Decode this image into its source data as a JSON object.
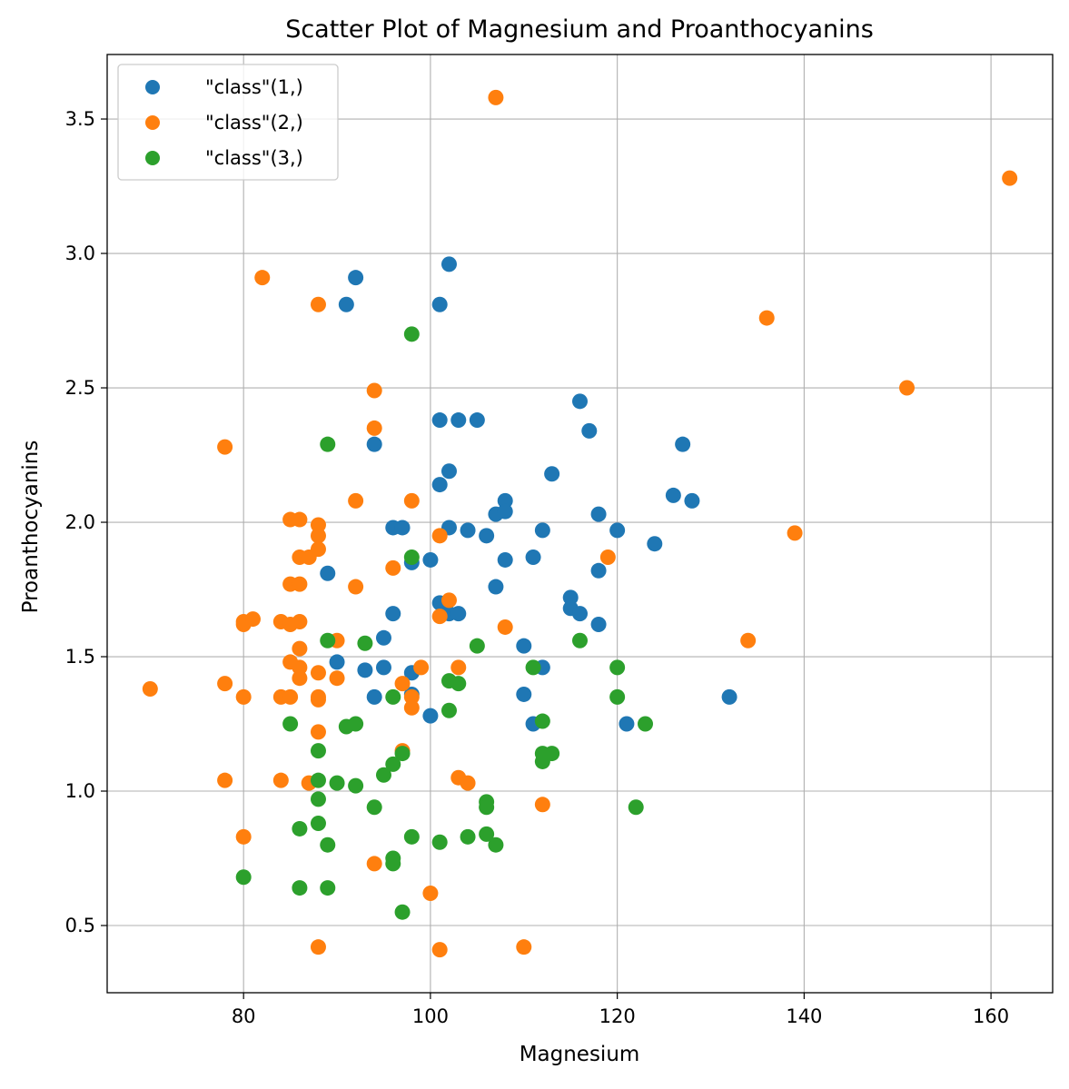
{
  "chart_data": {
    "type": "scatter",
    "title": "Scatter Plot of Magnesium and Proanthocyanins",
    "xlabel": "Magnesium",
    "ylabel": "Proanthocyanins",
    "xlim": [
      65.4,
      166.6
    ],
    "ylim": [
      0.25,
      3.74
    ],
    "xticks": [
      80,
      100,
      120,
      140,
      160
    ],
    "xtick_labels": [
      "80",
      "100",
      "120",
      "140",
      "160"
    ],
    "yticks": [
      0.5,
      1.0,
      1.5,
      2.0,
      2.5,
      3.0,
      3.5
    ],
    "ytick_labels": [
      "0.5",
      "1.0",
      "1.5",
      "2.0",
      "2.5",
      "3.0",
      "3.5"
    ],
    "grid": true,
    "legend_position": "top-left",
    "series": [
      {
        "name": "\"class\"(1,)",
        "color": "#1f77b4",
        "points": [
          [
            92,
            2.91
          ],
          [
            91,
            2.81
          ],
          [
            102,
            2.96
          ],
          [
            101,
            2.81
          ],
          [
            94,
            2.29
          ],
          [
            101,
            2.38
          ],
          [
            103,
            2.38
          ],
          [
            105,
            2.38
          ],
          [
            102,
            2.19
          ],
          [
            101,
            2.14
          ],
          [
            116,
            2.45
          ],
          [
            117,
            2.34
          ],
          [
            127,
            2.29
          ],
          [
            113,
            2.18
          ],
          [
            126,
            2.1
          ],
          [
            128,
            2.08
          ],
          [
            107,
            2.03
          ],
          [
            108,
            2.08
          ],
          [
            108,
            2.04
          ],
          [
            118,
            2.03
          ],
          [
            96,
            1.98
          ],
          [
            97,
            1.98
          ],
          [
            102,
            1.98
          ],
          [
            104,
            1.97
          ],
          [
            106,
            1.95
          ],
          [
            112,
            1.97
          ],
          [
            120,
            1.97
          ],
          [
            124,
            1.92
          ],
          [
            98,
            1.85
          ],
          [
            100,
            1.86
          ],
          [
            108,
            1.86
          ],
          [
            111,
            1.87
          ],
          [
            118,
            1.82
          ],
          [
            89,
            1.81
          ],
          [
            107,
            1.76
          ],
          [
            101,
            1.7
          ],
          [
            102,
            1.66
          ],
          [
            103,
            1.66
          ],
          [
            96,
            1.66
          ],
          [
            115,
            1.72
          ],
          [
            115,
            1.68
          ],
          [
            116,
            1.66
          ],
          [
            118,
            1.62
          ],
          [
            95,
            1.57
          ],
          [
            110,
            1.54
          ],
          [
            90,
            1.48
          ],
          [
            93,
            1.45
          ],
          [
            95,
            1.46
          ],
          [
            98,
            1.44
          ],
          [
            112,
            1.46
          ],
          [
            94,
            1.35
          ],
          [
            98,
            1.36
          ],
          [
            110,
            1.36
          ],
          [
            132,
            1.35
          ],
          [
            100,
            1.28
          ],
          [
            111,
            1.25
          ],
          [
            121,
            1.25
          ]
        ]
      },
      {
        "name": "\"class\"(2,)",
        "color": "#ff7f0e",
        "points": [
          [
            107,
            3.58
          ],
          [
            162,
            3.28
          ],
          [
            82,
            2.91
          ],
          [
            88,
            2.81
          ],
          [
            136,
            2.76
          ],
          [
            151,
            2.5
          ],
          [
            94,
            2.49
          ],
          [
            94,
            2.35
          ],
          [
            78,
            2.28
          ],
          [
            92,
            2.08
          ],
          [
            98,
            2.08
          ],
          [
            85,
            2.01
          ],
          [
            86,
            2.01
          ],
          [
            88,
            1.99
          ],
          [
            88,
            1.95
          ],
          [
            101,
            1.95
          ],
          [
            139,
            1.96
          ],
          [
            88,
            1.9
          ],
          [
            86,
            1.87
          ],
          [
            87,
            1.87
          ],
          [
            119,
            1.87
          ],
          [
            96,
            1.83
          ],
          [
            85,
            1.77
          ],
          [
            86,
            1.77
          ],
          [
            92,
            1.76
          ],
          [
            102,
            1.71
          ],
          [
            101,
            1.65
          ],
          [
            80,
            1.62
          ],
          [
            80,
            1.63
          ],
          [
            81,
            1.64
          ],
          [
            84,
            1.63
          ],
          [
            85,
            1.62
          ],
          [
            86,
            1.63
          ],
          [
            108,
            1.61
          ],
          [
            134,
            1.56
          ],
          [
            90,
            1.56
          ],
          [
            86,
            1.53
          ],
          [
            85,
            1.48
          ],
          [
            86,
            1.46
          ],
          [
            86,
            1.42
          ],
          [
            88,
            1.44
          ],
          [
            90,
            1.42
          ],
          [
            97,
            1.4
          ],
          [
            99,
            1.46
          ],
          [
            103,
            1.46
          ],
          [
            78,
            1.4
          ],
          [
            70,
            1.38
          ],
          [
            80,
            1.35
          ],
          [
            84,
            1.35
          ],
          [
            85,
            1.35
          ],
          [
            88,
            1.35
          ],
          [
            88,
            1.34
          ],
          [
            98,
            1.35
          ],
          [
            98,
            1.31
          ],
          [
            88,
            1.22
          ],
          [
            97,
            1.15
          ],
          [
            78,
            1.04
          ],
          [
            84,
            1.04
          ],
          [
            87,
            1.03
          ],
          [
            103,
            1.05
          ],
          [
            104,
            1.03
          ],
          [
            112,
            0.95
          ],
          [
            80,
            0.83
          ],
          [
            94,
            0.73
          ],
          [
            100,
            0.62
          ],
          [
            88,
            0.42
          ],
          [
            101,
            0.41
          ],
          [
            110,
            0.42
          ]
        ]
      },
      {
        "name": "\"class\"(3,)",
        "color": "#2ca02c",
        "points": [
          [
            98,
            2.7
          ],
          [
            89,
            2.29
          ],
          [
            98,
            1.87
          ],
          [
            89,
            1.56
          ],
          [
            93,
            1.55
          ],
          [
            105,
            1.54
          ],
          [
            116,
            1.56
          ],
          [
            111,
            1.46
          ],
          [
            120,
            1.46
          ],
          [
            102,
            1.41
          ],
          [
            103,
            1.4
          ],
          [
            96,
            1.35
          ],
          [
            120,
            1.35
          ],
          [
            102,
            1.3
          ],
          [
            85,
            1.25
          ],
          [
            91,
            1.24
          ],
          [
            92,
            1.25
          ],
          [
            112,
            1.26
          ],
          [
            123,
            1.25
          ],
          [
            88,
            1.15
          ],
          [
            97,
            1.14
          ],
          [
            112,
            1.14
          ],
          [
            113,
            1.14
          ],
          [
            112,
            1.11
          ],
          [
            96,
            1.1
          ],
          [
            95,
            1.06
          ],
          [
            88,
            1.04
          ],
          [
            90,
            1.03
          ],
          [
            92,
            1.02
          ],
          [
            88,
            0.97
          ],
          [
            106,
            0.96
          ],
          [
            94,
            0.94
          ],
          [
            106,
            0.94
          ],
          [
            122,
            0.94
          ],
          [
            88,
            0.88
          ],
          [
            86,
            0.86
          ],
          [
            98,
            0.83
          ],
          [
            104,
            0.83
          ],
          [
            106,
            0.84
          ],
          [
            101,
            0.81
          ],
          [
            89,
            0.8
          ],
          [
            107,
            0.8
          ],
          [
            96,
            0.75
          ],
          [
            96,
            0.73
          ],
          [
            80,
            0.68
          ],
          [
            86,
            0.64
          ],
          [
            89,
            0.64
          ],
          [
            97,
            0.55
          ]
        ]
      }
    ]
  }
}
